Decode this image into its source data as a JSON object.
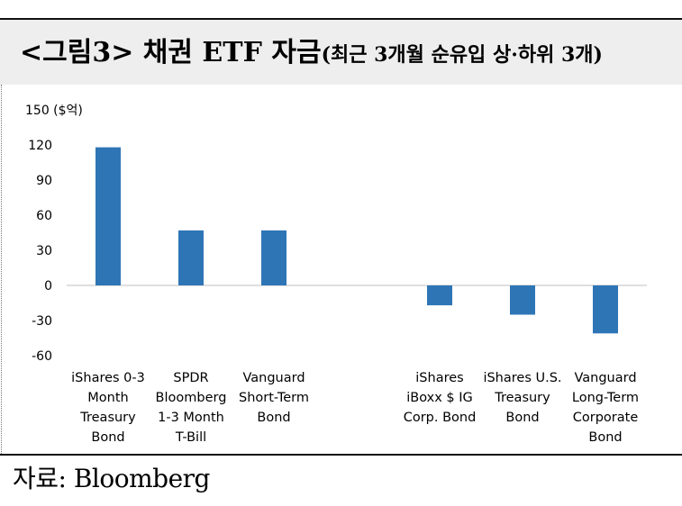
{
  "title": {
    "main": "<그림3> 채권 ETF 자금",
    "sub": "(최근 3개월 순유입 상·하위 3개)"
  },
  "source": "자료: Bloomberg",
  "chart_data": {
    "type": "bar",
    "unit_label": "150 ($억)",
    "ylim": [
      -60,
      150
    ],
    "yticks": [
      120,
      90,
      60,
      30,
      0,
      -30,
      -60
    ],
    "grid": false,
    "legend": "none",
    "bar_color": "#2e75b6",
    "categories": [
      [
        "iShares 0-3",
        "Month",
        "Treasury",
        "Bond"
      ],
      [
        "SPDR",
        "Bloomberg",
        "1-3 Month",
        "T-Bill"
      ],
      [
        "Vanguard",
        "Short-Term",
        "Bond"
      ],
      [
        "iShares",
        "iBoxx $ IG",
        "Corp. Bond"
      ],
      [
        "iShares U.S.",
        "Treasury",
        "Bond"
      ],
      [
        "Vanguard",
        "Long-Term",
        "Corporate",
        "Bond"
      ]
    ],
    "values": [
      118,
      47,
      47,
      -17,
      -25,
      -41
    ]
  }
}
